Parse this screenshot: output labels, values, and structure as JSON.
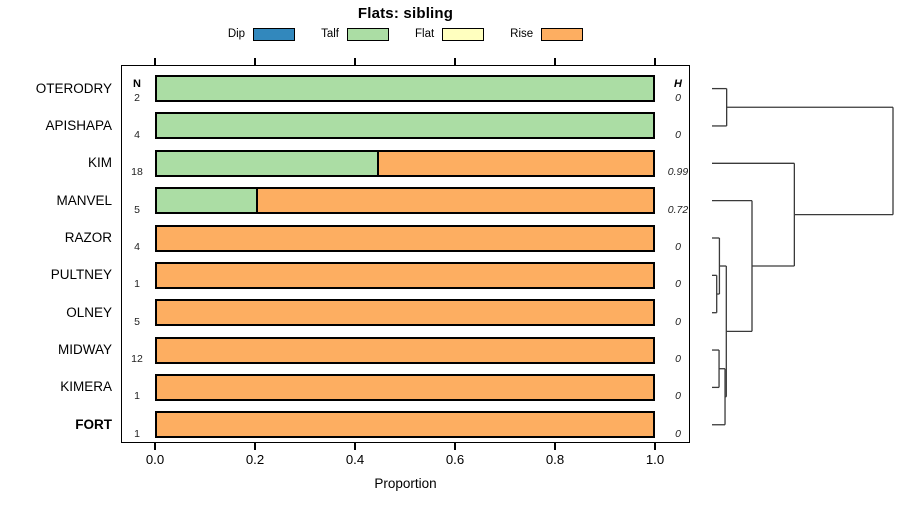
{
  "title": "Flats: sibling",
  "legend": [
    {
      "label": "Dip",
      "color": "#3288BD"
    },
    {
      "label": "Talf",
      "color": "#ABDDA4"
    },
    {
      "label": "Flat",
      "color": "#FFFFBF"
    },
    {
      "label": "Rise",
      "color": "#FDAE61"
    }
  ],
  "columns": {
    "n_header": "N",
    "h_header": "H"
  },
  "x_axis": {
    "title": "Proportion",
    "tick_labels": [
      "0.0",
      "0.2",
      "0.4",
      "0.6",
      "0.8",
      "1.0"
    ]
  },
  "chart_data": {
    "type": "bar",
    "stacked": true,
    "orientation": "horizontal",
    "title": "Flats: sibling",
    "xlabel": "Proportion",
    "xlim": [
      0,
      1.0
    ],
    "x_ticks": [
      0.0,
      0.2,
      0.4,
      0.6,
      0.8,
      1.0
    ],
    "grid": false,
    "legend_position": "top",
    "series_names": [
      "Dip",
      "Talf",
      "Flat",
      "Rise"
    ],
    "series_colors": {
      "Dip": "#3288BD",
      "Talf": "#ABDDA4",
      "Flat": "#FFFFBF",
      "Rise": "#FDAE61"
    },
    "rows": [
      {
        "label": "OTERODRY",
        "bold": false,
        "n": "2",
        "h": "0",
        "values": {
          "Dip": 0,
          "Talf": 1.0,
          "Flat": 0,
          "Rise": 0
        }
      },
      {
        "label": "APISHAPA",
        "bold": false,
        "n": "4",
        "h": "0",
        "values": {
          "Dip": 0,
          "Talf": 1.0,
          "Flat": 0,
          "Rise": 0
        }
      },
      {
        "label": "KIM",
        "bold": false,
        "n": "18",
        "h": "0.99",
        "values": {
          "Dip": 0,
          "Talf": 0.444,
          "Flat": 0,
          "Rise": 0.556
        }
      },
      {
        "label": "MANVEL",
        "bold": false,
        "n": "5",
        "h": "0.72",
        "values": {
          "Dip": 0,
          "Talf": 0.2,
          "Flat": 0,
          "Rise": 0.8
        }
      },
      {
        "label": "RAZOR",
        "bold": false,
        "n": "4",
        "h": "0",
        "values": {
          "Dip": 0,
          "Talf": 0,
          "Flat": 0,
          "Rise": 1.0
        }
      },
      {
        "label": "PULTNEY",
        "bold": false,
        "n": "1",
        "h": "0",
        "values": {
          "Dip": 0,
          "Talf": 0,
          "Flat": 0,
          "Rise": 1.0
        }
      },
      {
        "label": "OLNEY",
        "bold": false,
        "n": "5",
        "h": "0",
        "values": {
          "Dip": 0,
          "Talf": 0,
          "Flat": 0,
          "Rise": 1.0
        }
      },
      {
        "label": "MIDWAY",
        "bold": false,
        "n": "12",
        "h": "0",
        "values": {
          "Dip": 0,
          "Talf": 0,
          "Flat": 0,
          "Rise": 1.0
        }
      },
      {
        "label": "KIMERA",
        "bold": false,
        "n": "1",
        "h": "0",
        "values": {
          "Dip": 0,
          "Talf": 0,
          "Flat": 0,
          "Rise": 1.0
        }
      },
      {
        "label": "FORT",
        "bold": true,
        "n": "1",
        "h": "0",
        "values": {
          "Dip": 0,
          "Talf": 0,
          "Flat": 0,
          "Rise": 1.0
        }
      }
    ],
    "dendrogram": {
      "leaf_order": [
        "OTERODRY",
        "APISHAPA",
        "KIM",
        "MANVEL",
        "RAZOR",
        "PULTNEY",
        "OLNEY",
        "MIDWAY",
        "KIMERA",
        "FORT"
      ],
      "merges": [
        {
          "id": "M1",
          "a": "L0",
          "b": "L1",
          "height": 0.081
        },
        {
          "id": "M2",
          "a": "L5",
          "b": "L6",
          "height": 0.026
        },
        {
          "id": "M3",
          "a": "L4",
          "b": "M2",
          "height": 0.041
        },
        {
          "id": "M4",
          "a": "L7",
          "b": "L8",
          "height": 0.039
        },
        {
          "id": "M5",
          "a": "M4",
          "b": "L9",
          "height": 0.072
        },
        {
          "id": "M6",
          "a": "M3",
          "b": "M5",
          "height": 0.079
        },
        {
          "id": "M7",
          "a": "L3",
          "b": "M6",
          "height": 0.221
        },
        {
          "id": "M8",
          "a": "L2",
          "b": "M7",
          "height": 0.455
        },
        {
          "id": "M9",
          "a": "M1",
          "b": "M8",
          "height": 1.0
        }
      ]
    }
  }
}
